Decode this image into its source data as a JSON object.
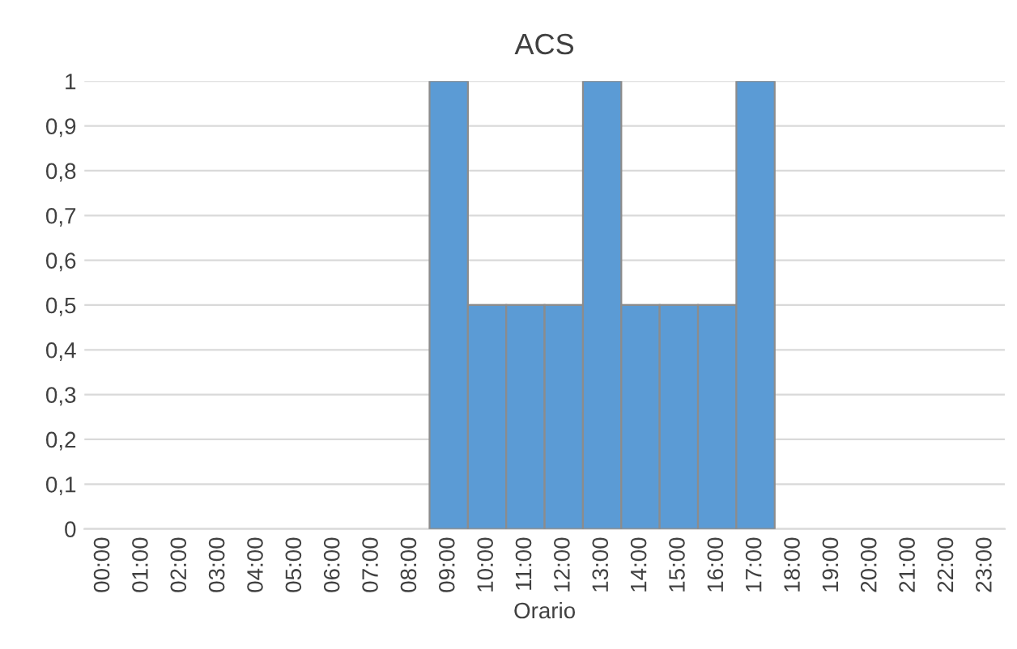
{
  "chart_data": {
    "type": "bar",
    "title": "ACS",
    "xlabel": "Orario",
    "categories": [
      "00:00",
      "01:00",
      "02:00",
      "03:00",
      "04:00",
      "05:00",
      "06:00",
      "07:00",
      "08:00",
      "09:00",
      "10:00",
      "11:00",
      "12:00",
      "13:00",
      "14:00",
      "15:00",
      "16:00",
      "17:00",
      "18:00",
      "19:00",
      "20:00",
      "21:00",
      "22:00",
      "23:00"
    ],
    "values": [
      0,
      0,
      0,
      0,
      0,
      0,
      0,
      0,
      0,
      1,
      0.5,
      0.5,
      0.5,
      1,
      0.5,
      0.5,
      0.5,
      1,
      0,
      0,
      0,
      0,
      0,
      0
    ],
    "color": "#5b9bd5",
    "ylim": [
      0,
      1
    ],
    "yticks": [
      0,
      {
        "value": 0.1,
        "label": "0,1"
      },
      {
        "value": 0.2,
        "label": "0,2"
      },
      {
        "value": 0.3,
        "label": "0,3"
      },
      {
        "value": 0.4,
        "label": "0,4"
      },
      {
        "value": 0.5,
        "label": "0,5"
      },
      {
        "value": 0.6,
        "label": "0,6"
      },
      {
        "value": 0.7,
        "label": "0,7"
      },
      {
        "value": 0.8,
        "label": "0,8"
      },
      {
        "value": 0.9,
        "label": "0,9"
      },
      1
    ],
    "grid": "y",
    "legend": false
  }
}
